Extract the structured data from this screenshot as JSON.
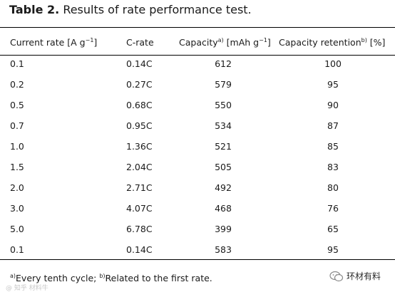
{
  "table": {
    "caption_label": "Table 2.",
    "caption_text": "Results of rate performance test.",
    "headers": {
      "current_rate_main": "Current rate [A g",
      "current_rate_sup": "−1",
      "current_rate_end": "]",
      "c_rate": "C-rate",
      "capacity_main": "Capacity",
      "capacity_sup": "a)",
      "capacity_unit_main": " [mAh g",
      "capacity_unit_sup": "−1",
      "capacity_unit_end": "]",
      "retention_main": "Capacity retention",
      "retention_sup": "b)",
      "retention_end": " [%]"
    },
    "rows": [
      [
        "0.1",
        "0.14C",
        "612",
        "100"
      ],
      [
        "0.2",
        "0.27C",
        "579",
        "95"
      ],
      [
        "0.5",
        "0.68C",
        "550",
        "90"
      ],
      [
        "0.7",
        "0.95C",
        "534",
        "87"
      ],
      [
        "1.0",
        "1.36C",
        "521",
        "85"
      ],
      [
        "1.5",
        "2.04C",
        "505",
        "83"
      ],
      [
        "2.0",
        "2.71C",
        "492",
        "80"
      ],
      [
        "3.0",
        "4.07C",
        "468",
        "76"
      ],
      [
        "5.0",
        "6.78C",
        "399",
        "65"
      ],
      [
        "0.1",
        "0.14C",
        "583",
        "95"
      ]
    ],
    "footnote": {
      "a_mark": "a)",
      "a_text": "Every tenth cycle; ",
      "b_mark": "b)",
      "b_text": "Related to the first rate."
    }
  },
  "watermark": {
    "left_text": "@ 知乎 材料牛",
    "right_text": "环材有料",
    "logo_icon": "wechat-icon",
    "logo_color": "#8a8a8a"
  }
}
